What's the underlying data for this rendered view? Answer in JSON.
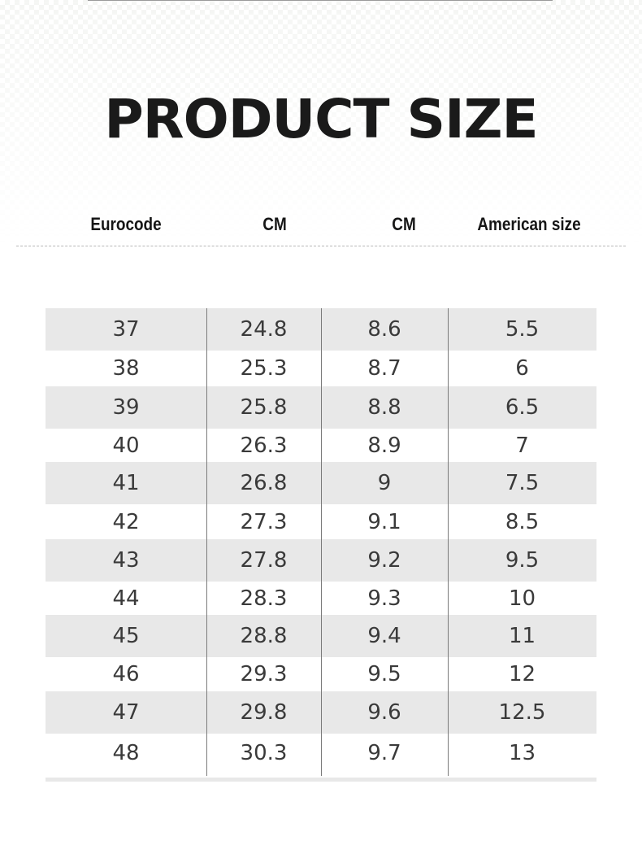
{
  "title": "PRODUCT SIZE",
  "headers": [
    "Eurocode",
    "CM",
    "CM",
    "American size"
  ],
  "rows": [
    [
      "37",
      "24.8",
      "8.6",
      "5.5"
    ],
    [
      "38",
      "25.3",
      "8.7",
      "6"
    ],
    [
      "39",
      "25.8",
      "8.8",
      "6.5"
    ],
    [
      "40",
      "26.3",
      "8.9",
      "7"
    ],
    [
      "41",
      "26.8",
      "9",
      "7.5"
    ],
    [
      "42",
      "27.3",
      "9.1",
      "8.5"
    ],
    [
      "43",
      "27.8",
      "9.2",
      "9.5"
    ],
    [
      "44",
      "28.3",
      "9.3",
      "10"
    ],
    [
      "45",
      "28.8",
      "9.4",
      "11"
    ],
    [
      "46",
      "29.3",
      "9.5",
      "12"
    ],
    [
      "47",
      "29.8",
      "9.6",
      "12.5"
    ],
    [
      "48",
      "30.3",
      "9.7",
      "13"
    ]
  ],
  "colors": {
    "stripe": "#e8e8e8",
    "text": "#3a3a3a",
    "title": "#1a1a1a"
  }
}
